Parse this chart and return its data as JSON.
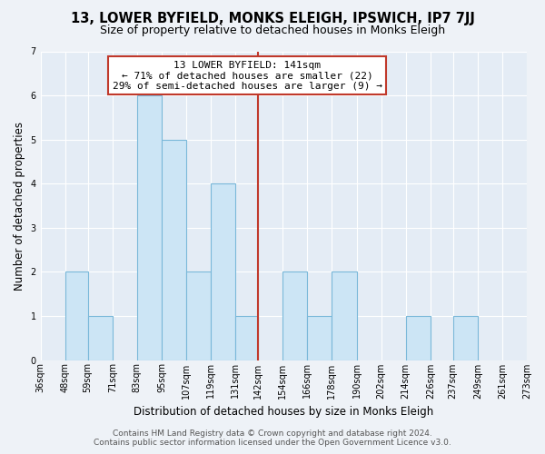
{
  "title": "13, LOWER BYFIELD, MONKS ELEIGH, IPSWICH, IP7 7JJ",
  "subtitle": "Size of property relative to detached houses in Monks Eleigh",
  "xlabel": "Distribution of detached houses by size in Monks Eleigh",
  "ylabel": "Number of detached properties",
  "bin_labels": [
    "36sqm",
    "48sqm",
    "59sqm",
    "71sqm",
    "83sqm",
    "95sqm",
    "107sqm",
    "119sqm",
    "131sqm",
    "142sqm",
    "154sqm",
    "166sqm",
    "178sqm",
    "190sqm",
    "202sqm",
    "214sqm",
    "226sqm",
    "237sqm",
    "249sqm",
    "261sqm",
    "273sqm"
  ],
  "bin_values": [
    36,
    48,
    59,
    71,
    83,
    95,
    107,
    119,
    131,
    142,
    154,
    166,
    178,
    190,
    202,
    214,
    226,
    237,
    249,
    261,
    273
  ],
  "bar_heights": [
    0,
    2,
    1,
    0,
    6,
    5,
    2,
    4,
    1,
    0,
    2,
    1,
    2,
    0,
    0,
    1,
    0,
    1,
    0,
    0
  ],
  "bar_color": "#cce5f5",
  "bar_edge_color": "#7ab8d9",
  "reference_line_x": 142,
  "reference_line_color": "#c0392b",
  "annotation_text_line1": "13 LOWER BYFIELD: 141sqm",
  "annotation_text_line2": "← 71% of detached houses are smaller (22)",
  "annotation_text_line3": "29% of semi-detached houses are larger (9) →",
  "ylim": [
    0,
    7
  ],
  "yticks": [
    0,
    1,
    2,
    3,
    4,
    5,
    6,
    7
  ],
  "footer_line1": "Contains HM Land Registry data © Crown copyright and database right 2024.",
  "footer_line2": "Contains public sector information licensed under the Open Government Licence v3.0.",
  "bg_color": "#eef2f7",
  "plot_bg_color": "#e4ecf5",
  "title_fontsize": 10.5,
  "subtitle_fontsize": 9,
  "axis_label_fontsize": 8.5,
  "tick_fontsize": 7,
  "annotation_fontsize": 8,
  "footer_fontsize": 6.5
}
